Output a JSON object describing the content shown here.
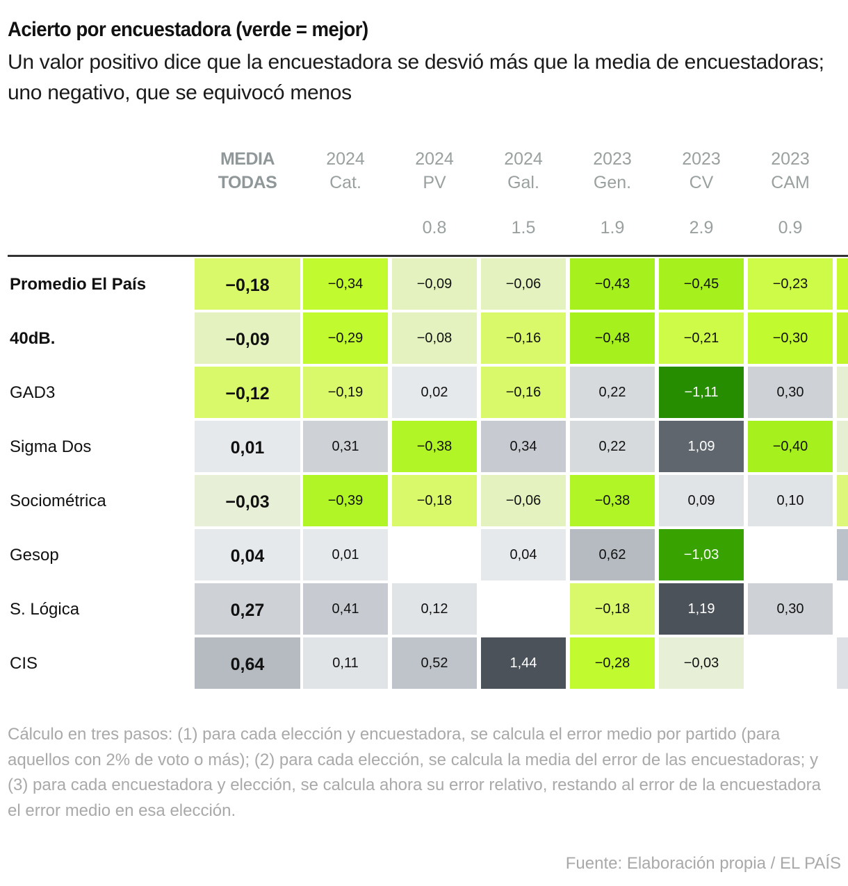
{
  "title": "Acierto por encuestadora (verde = mejor)",
  "subtitle": "Un valor positivo dice que la encuestadora se desvió más que la media de encuestadoras; uno negativo, que se equivocó menos",
  "note": "Cálculo en tres pasos: (1) para cada elección y encuestadora, se calcula el error medio por partido (para aquellos con 2% de voto o más); (2) para cada elección, se calcula la media del error de las encuestadoras; y (3) para cada encuestadora y elección, se calcula ahora su error relativo, restando al error de la encuestadora el error medio en esa elección.",
  "source": "Fuente: Elaboración propia / EL PAÍS",
  "colors": {
    "best_green": "#2a8f00",
    "green": "#a6f01e",
    "light_green": "#d9f86a",
    "pale_green": "#e6f0cc",
    "neutral": "#e5e8ea",
    "gray": "#c4c9cf",
    "dark_gray": "#4b525a"
  },
  "chart_data": {
    "type": "heatmap",
    "title": "Acierto por encuestadora (verde = mejor)",
    "media_header": [
      "MEDIA",
      "TODAS"
    ],
    "columns": [
      {
        "year": "2024",
        "label": "Cat.",
        "sub": ""
      },
      {
        "year": "2024",
        "label": "PV",
        "sub": "0.8"
      },
      {
        "year": "2024",
        "label": "Gal.",
        "sub": "1.5"
      },
      {
        "year": "2023",
        "label": "Gen.",
        "sub": "1.9"
      },
      {
        "year": "2023",
        "label": "CV",
        "sub": "2.9"
      },
      {
        "year": "2023",
        "label": "CAM",
        "sub": "0.9"
      }
    ],
    "rows": [
      {
        "name": "Promedio El País",
        "bold": true,
        "media": "−0,18",
        "values": [
          "−0,34",
          "−0,09",
          "−0,06",
          "−0,43",
          "−0,45",
          "−0,23"
        ]
      },
      {
        "name": "40dB.",
        "bold": true,
        "media": "−0,09",
        "values": [
          "−0,29",
          "−0,08",
          "−0,16",
          "−0,48",
          "−0,21",
          "−0,30"
        ]
      },
      {
        "name": "GAD3",
        "bold": false,
        "media": "−0,12",
        "values": [
          "−0,19",
          "0,02",
          "−0,16",
          "0,22",
          "−1,11",
          "0,30"
        ]
      },
      {
        "name": "Sigma Dos",
        "bold": false,
        "media": "0,01",
        "values": [
          "0,31",
          "−0,38",
          "0,34",
          "0,22",
          "1,09",
          "−0,40"
        ]
      },
      {
        "name": "Sociométrica",
        "bold": false,
        "media": "−0,03",
        "values": [
          "−0,39",
          "−0,18",
          "−0,06",
          "−0,38",
          "0,09",
          "0,10"
        ]
      },
      {
        "name": "Gesop",
        "bold": false,
        "media": "0,04",
        "values": [
          "0,01",
          "",
          "0,04",
          "0,62",
          "−1,03",
          ""
        ]
      },
      {
        "name": "S. Lógica",
        "bold": false,
        "media": "0,27",
        "values": [
          "0,41",
          "0,12",
          "",
          "−0,18",
          "1,19",
          "0,30"
        ]
      },
      {
        "name": "CIS",
        "bold": false,
        "media": "0,64",
        "values": [
          "0,11",
          "0,52",
          "1,44",
          "−0,28",
          "−0,03",
          ""
        ]
      }
    ],
    "overflow_column_visible": true
  }
}
